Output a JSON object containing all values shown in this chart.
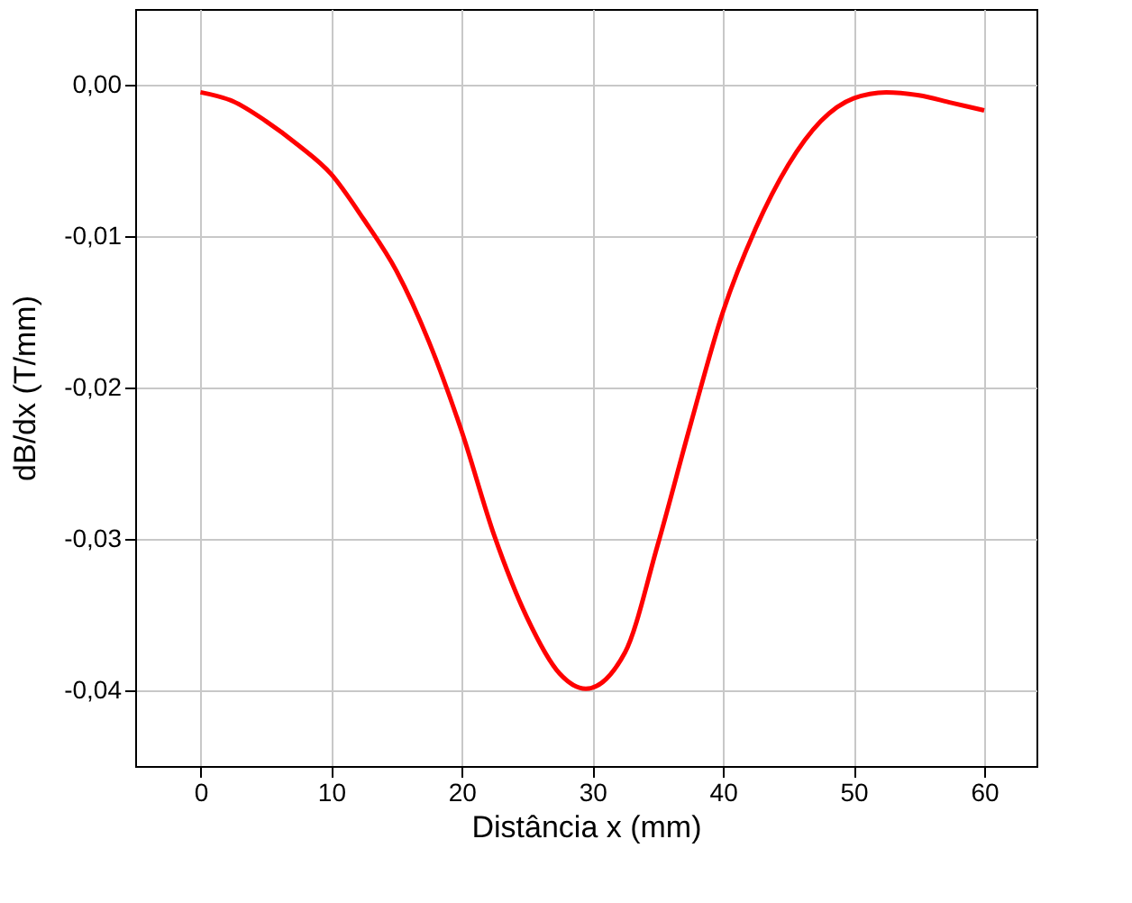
{
  "chart_data": {
    "type": "line",
    "xlabel": "Distância x (mm)",
    "ylabel": "dB/dx (T/mm)",
    "x": [
      0,
      2.5,
      5,
      7.5,
      10,
      12.5,
      15,
      17.5,
      20,
      22.5,
      25,
      27.5,
      29.5,
      32.5,
      35,
      37.5,
      40,
      42.5,
      45,
      47.5,
      50,
      52.5,
      55,
      57.5,
      60
    ],
    "series": [
      {
        "color": "#ff0000",
        "values": [
          -0.0005,
          -0.0011,
          -0.0024,
          -0.004,
          -0.0059,
          -0.0089,
          -0.0123,
          -0.017,
          -0.0229,
          -0.0298,
          -0.0352,
          -0.0389,
          -0.0399,
          -0.0375,
          -0.0304,
          -0.0225,
          -0.015,
          -0.0095,
          -0.0053,
          -0.0024,
          -0.0009,
          -0.0005,
          -0.0007,
          -0.0012,
          -0.0017
        ]
      }
    ],
    "xlim": [
      -5,
      64
    ],
    "xticks": [
      0,
      10,
      20,
      30,
      40,
      50,
      60
    ],
    "ylim": [
      -0.045,
      0.005
    ],
    "yticks": [
      {
        "value": 0,
        "label": "0,00"
      },
      {
        "value": -0.01,
        "label": "-0,01"
      },
      {
        "value": -0.02,
        "label": "-0,02"
      },
      {
        "value": -0.03,
        "label": "-0,03"
      },
      {
        "value": -0.04,
        "label": "-0,04"
      }
    ],
    "grid": true,
    "legend": false,
    "marker": "none",
    "line_style": "solid"
  }
}
